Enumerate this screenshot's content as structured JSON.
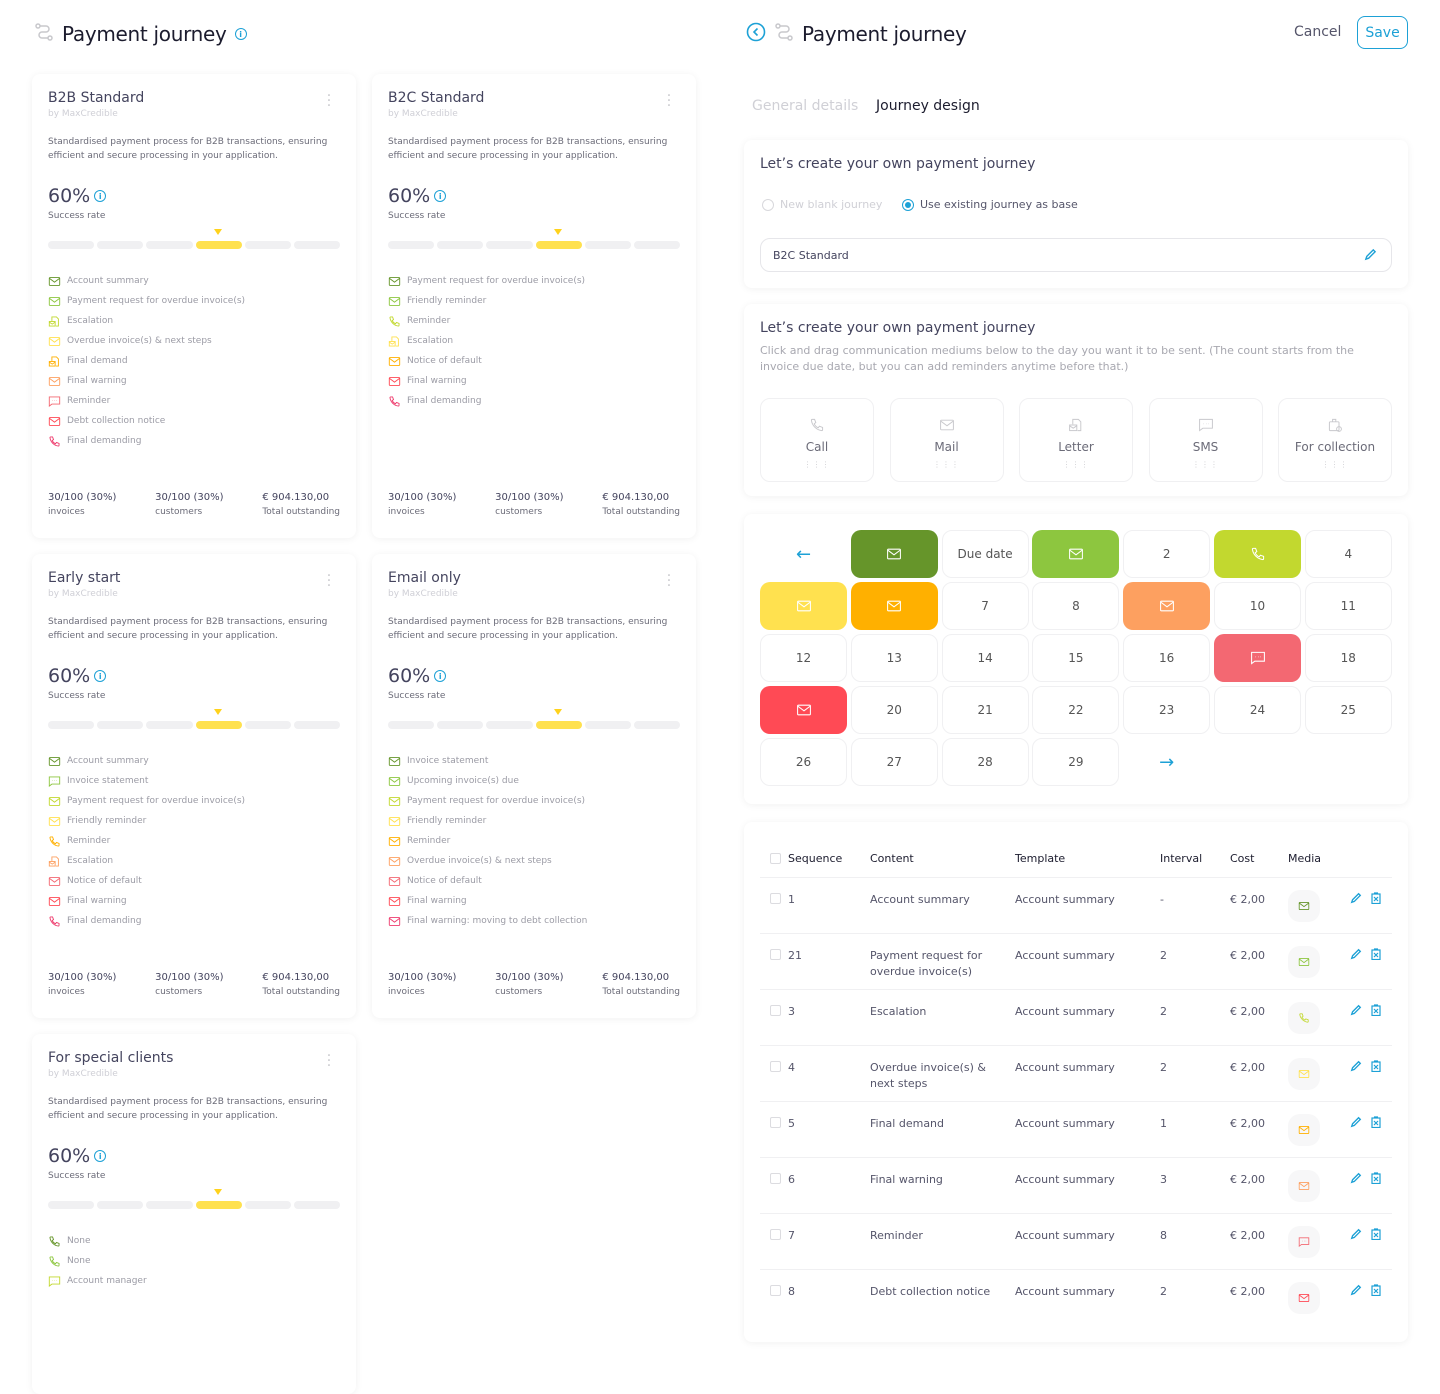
{
  "colors": {
    "accent": "#1da1d6",
    "dark_green": "#66952a",
    "green": "#8dc63f",
    "lime": "#c2d82f",
    "yellow": "#ffe14f",
    "amber": "#ffb000",
    "orange": "#fda060",
    "salmon": "#f36872",
    "red": "#ff4a55",
    "pink": "#ee3d6e"
  },
  "left": {
    "title": "Payment journey",
    "info_icon": "info-icon",
    "route_icon": "route-icon"
  },
  "cards": [
    {
      "name": "B2B Standard",
      "by": "by MaxCredible",
      "desc": "Standardised payment process for B2B transactions, ensuring efficient and secure processing in your application.",
      "rate": "60%",
      "rate_label": "Success rate",
      "rate_level": 4,
      "rate_segments": 6,
      "items": [
        {
          "icon": "mail",
          "color": "dark_green",
          "label": "Account summary"
        },
        {
          "icon": "mail",
          "color": "green",
          "label": "Payment request for overdue invoice(s)"
        },
        {
          "icon": "letter",
          "color": "lime",
          "label": "Escalation"
        },
        {
          "icon": "mail",
          "color": "yellow",
          "label": "Overdue invoice(s) & next steps"
        },
        {
          "icon": "letter",
          "color": "amber",
          "label": "Final demand"
        },
        {
          "icon": "mail",
          "color": "orange",
          "label": "Final warning"
        },
        {
          "icon": "sms",
          "color": "salmon",
          "label": "Reminder"
        },
        {
          "icon": "mail",
          "color": "red",
          "label": "Debt collection notice"
        },
        {
          "icon": "phone",
          "color": "pink",
          "label": "Final demanding"
        }
      ],
      "stats": [
        {
          "value": "30/100 (30%)",
          "label": "invoices"
        },
        {
          "value": "30/100 (30%)",
          "label": "customers"
        },
        {
          "value": "€ 904.130,00",
          "label": "Total outstanding"
        }
      ]
    },
    {
      "name": "B2C Standard",
      "by": "by MaxCredible",
      "desc": "Standardised payment process for B2B transactions, ensuring efficient and secure processing in your application.",
      "rate": "60%",
      "rate_label": "Success rate",
      "rate_level": 4,
      "rate_segments": 6,
      "items": [
        {
          "icon": "mail",
          "color": "dark_green",
          "label": "Payment request for overdue invoice(s)"
        },
        {
          "icon": "mail",
          "color": "green",
          "label": "Friendly reminder"
        },
        {
          "icon": "phone",
          "color": "lime",
          "label": "Reminder"
        },
        {
          "icon": "letter",
          "color": "yellow",
          "label": "Escalation"
        },
        {
          "icon": "mail",
          "color": "amber",
          "label": "Notice of default"
        },
        {
          "icon": "mail",
          "color": "red",
          "label": "Final warning"
        },
        {
          "icon": "phone",
          "color": "pink",
          "label": "Final demanding"
        }
      ],
      "stats": [
        {
          "value": "30/100 (30%)",
          "label": "invoices"
        },
        {
          "value": "30/100 (30%)",
          "label": "customers"
        },
        {
          "value": "€ 904.130,00",
          "label": "Total outstanding"
        }
      ]
    },
    {
      "name": "Early start",
      "by": "by MaxCredible",
      "desc": "Standardised payment process for B2B transactions, ensuring efficient and secure processing in your application.",
      "rate": "60%",
      "rate_label": "Success rate",
      "rate_level": 4,
      "rate_segments": 6,
      "items": [
        {
          "icon": "mail",
          "color": "dark_green",
          "label": "Account summary"
        },
        {
          "icon": "sms",
          "color": "green",
          "label": "Invoice statement"
        },
        {
          "icon": "mail",
          "color": "lime",
          "label": "Payment request for overdue invoice(s)"
        },
        {
          "icon": "mail",
          "color": "yellow",
          "label": "Friendly reminder"
        },
        {
          "icon": "phone",
          "color": "amber",
          "label": "Reminder"
        },
        {
          "icon": "letter",
          "color": "orange",
          "label": "Escalation"
        },
        {
          "icon": "mail",
          "color": "salmon",
          "label": "Notice of default"
        },
        {
          "icon": "mail",
          "color": "red",
          "label": "Final warning"
        },
        {
          "icon": "phone",
          "color": "pink",
          "label": "Final demanding"
        }
      ],
      "stats": [
        {
          "value": "30/100 (30%)",
          "label": "invoices"
        },
        {
          "value": "30/100 (30%)",
          "label": "customers"
        },
        {
          "value": "€ 904.130,00",
          "label": "Total outstanding"
        }
      ]
    },
    {
      "name": "Email only",
      "by": "by MaxCredible",
      "desc": "Standardised payment process for B2B transactions, ensuring efficient and secure processing in your application.",
      "rate": "60%",
      "rate_label": "Success rate",
      "rate_level": 4,
      "rate_segments": 6,
      "items": [
        {
          "icon": "mail",
          "color": "dark_green",
          "label": "Invoice statement"
        },
        {
          "icon": "mail",
          "color": "green",
          "label": "Upcoming invoice(s) due"
        },
        {
          "icon": "mail",
          "color": "lime",
          "label": "Payment request for overdue invoice(s)"
        },
        {
          "icon": "mail",
          "color": "yellow",
          "label": "Friendly reminder"
        },
        {
          "icon": "mail",
          "color": "amber",
          "label": "Reminder"
        },
        {
          "icon": "mail",
          "color": "orange",
          "label": "Overdue invoice(s) & next steps"
        },
        {
          "icon": "mail",
          "color": "salmon",
          "label": "Notice of default"
        },
        {
          "icon": "mail",
          "color": "red",
          "label": "Final warning"
        },
        {
          "icon": "mail",
          "color": "pink",
          "label": "Final warning: moving to debt collection"
        }
      ],
      "stats": [
        {
          "value": "30/100 (30%)",
          "label": "invoices"
        },
        {
          "value": "30/100 (30%)",
          "label": "customers"
        },
        {
          "value": "€ 904.130,00",
          "label": "Total outstanding"
        }
      ]
    },
    {
      "name": "For special clients",
      "by": "by MaxCredible",
      "desc": "Standardised payment process for B2B transactions, ensuring efficient and secure processing in your application.",
      "rate": "60%",
      "rate_label": "Success rate",
      "rate_level": 4,
      "rate_segments": 6,
      "items": [
        {
          "icon": "phone",
          "color": "dark_green",
          "label": "None"
        },
        {
          "icon": "phone",
          "color": "green",
          "label": "None"
        },
        {
          "icon": "sms",
          "color": "lime",
          "label": "Account manager"
        }
      ],
      "stats": []
    }
  ],
  "right": {
    "title": "Payment journey",
    "cancel": "Cancel",
    "save": "Save",
    "tabs": [
      {
        "label": "General details",
        "active": false
      },
      {
        "label": "Journey design",
        "active": true
      }
    ],
    "base": {
      "heading": "Let’s create your own payment journey",
      "options": [
        {
          "label": "New blank journey",
          "selected": false
        },
        {
          "label": "Use existing journey as base",
          "selected": true
        }
      ],
      "selected_journey": "B2C Standard"
    },
    "mediums": {
      "heading": "Let’s create your own payment journey",
      "hint": "Click and drag communication mediums below to the day you want it to be sent. (The count starts from the invoice due date, but you can add reminders anytime before that.)",
      "items": [
        {
          "icon": "phone",
          "label": "Call"
        },
        {
          "icon": "mail",
          "label": "Mail"
        },
        {
          "icon": "letter",
          "label": "Letter"
        },
        {
          "icon": "sms",
          "label": "SMS"
        },
        {
          "icon": "collection",
          "label": "For collection"
        }
      ]
    },
    "calendar": [
      {
        "type": "prev"
      },
      {
        "type": "media",
        "icon": "mail",
        "color": "dark_green"
      },
      {
        "type": "day",
        "label": "Due date"
      },
      {
        "type": "media",
        "icon": "mail",
        "color": "green"
      },
      {
        "type": "day",
        "label": "2"
      },
      {
        "type": "media",
        "icon": "phone",
        "color": "lime"
      },
      {
        "type": "day",
        "label": "4"
      },
      {
        "type": "media",
        "icon": "mail",
        "color": "yellow"
      },
      {
        "type": "media",
        "icon": "mail",
        "color": "amber"
      },
      {
        "type": "day",
        "label": "7"
      },
      {
        "type": "day",
        "label": "8"
      },
      {
        "type": "media",
        "icon": "mail",
        "color": "orange"
      },
      {
        "type": "day",
        "label": "10"
      },
      {
        "type": "day",
        "label": "11"
      },
      {
        "type": "day",
        "label": "12"
      },
      {
        "type": "day",
        "label": "13"
      },
      {
        "type": "day",
        "label": "14"
      },
      {
        "type": "day",
        "label": "15"
      },
      {
        "type": "day",
        "label": "16"
      },
      {
        "type": "media",
        "icon": "sms",
        "color": "salmon"
      },
      {
        "type": "day",
        "label": "18"
      },
      {
        "type": "media",
        "icon": "mail",
        "color": "red"
      },
      {
        "type": "day",
        "label": "20"
      },
      {
        "type": "day",
        "label": "21"
      },
      {
        "type": "day",
        "label": "22"
      },
      {
        "type": "day",
        "label": "23"
      },
      {
        "type": "day",
        "label": "24"
      },
      {
        "type": "day",
        "label": "25"
      },
      {
        "type": "day",
        "label": "26"
      },
      {
        "type": "day",
        "label": "27"
      },
      {
        "type": "day",
        "label": "28"
      },
      {
        "type": "day",
        "label": "29"
      },
      {
        "type": "next"
      }
    ],
    "table": {
      "headers": {
        "sequence": "Sequence",
        "content": "Content",
        "template": "Template",
        "interval": "Interval",
        "cost": "Cost",
        "media": "Media"
      },
      "rows": [
        {
          "sequence": "1",
          "content": "Account summary",
          "template": "Account summary",
          "interval": "-",
          "cost": "€ 2,00",
          "media": "mail",
          "color": "dark_green"
        },
        {
          "sequence": "21",
          "content": "Payment request for overdue invoice(s)",
          "template": "Account summary",
          "interval": "2",
          "cost": "€ 2,00",
          "media": "mail",
          "color": "green"
        },
        {
          "sequence": "3",
          "content": "Escalation",
          "template": "Account summary",
          "interval": "2",
          "cost": "€ 2,00",
          "media": "phone",
          "color": "lime"
        },
        {
          "sequence": "4",
          "content": "Overdue invoice(s) & next steps",
          "template": "Account summary",
          "interval": "2",
          "cost": "€ 2,00",
          "media": "mail",
          "color": "yellow"
        },
        {
          "sequence": "5",
          "content": "Final demand",
          "template": "Account summary",
          "interval": "1",
          "cost": "€ 2,00",
          "media": "mail",
          "color": "amber"
        },
        {
          "sequence": "6",
          "content": "Final warning",
          "template": "Account summary",
          "interval": "3",
          "cost": "€ 2,00",
          "media": "mail",
          "color": "orange"
        },
        {
          "sequence": "7",
          "content": "Reminder",
          "template": "Account summary",
          "interval": "8",
          "cost": "€ 2,00",
          "media": "sms",
          "color": "salmon"
        },
        {
          "sequence": "8",
          "content": "Debt collection notice",
          "template": "Account summary",
          "interval": "2",
          "cost": "€ 2,00",
          "media": "mail",
          "color": "red"
        }
      ]
    }
  }
}
